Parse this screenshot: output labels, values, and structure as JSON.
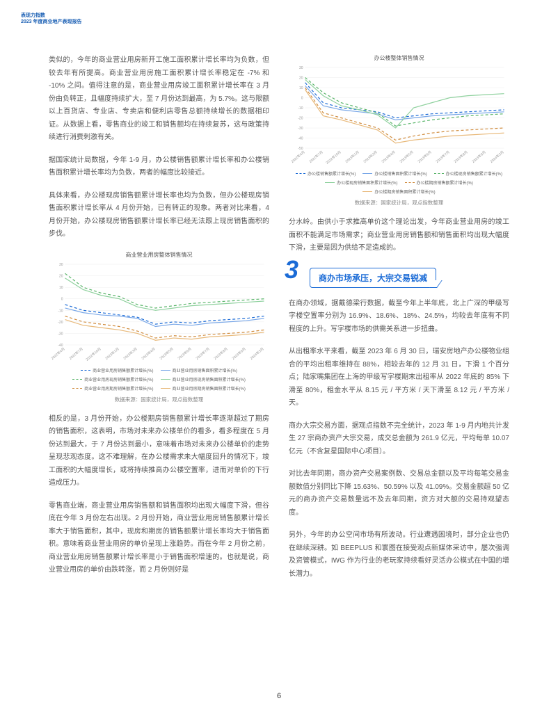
{
  "header": {
    "line1": "表现力指数",
    "line2": "2023 年度商业地产表现报告"
  },
  "paragraphs_left": [
    "类似的，今年的商业营业用房新开工施工面积累计增长率均为负数，但较去年有所提高。商业营业用房施工面积累计增长率稳定在 -7% 和 -10% 之间。值得注意的是，商业营业用房竣工面积累计增长率在 3 月份由负转正，且幅度持续扩大，至 7 月份达到最高，为 5.7%。这与限额以上百货店、专业店、专卖店和便利店零售总额持续增长的数据相印证。从数据上看，零售商业的竣工和销售额均在持续复苏，这与政策持续进行消费刺激有关。",
    "据国家统计局数据，今年 1-9 月，办公楼销售额累计增长率和办公楼销售面积累计增长率均为负数，两者的幅度比较接近。",
    "具体来看，办公楼现房销售额累计增长率也均为负数，但办公楼现房销售面积累计增长率从 4 月份开始，已有转正的现象。两者对比来看，4 月份开始，办公楼现房销售额累计增长率已经无法跟上现房销售面积的步伐。"
  ],
  "paragraphs_left_after_chart": [
    "相反的是，3 月份开始，办公楼期房销售额累计增长率逐渐超过了期房的销售面积，这表明，市场对未来办公楼单价的看多，看多程度在 5 月份达到最大，于 7 月份达到最小，意味着市场对未来办公楼单价的走势呈现悲观态度。这不难理解，在办公楼需求未大幅度回升的情况下，竣工面积的大幅度增长，或将持续推高办公楼空置率，进而对单价的下行造成压力。",
    "零售商业端，商业营业用房销售额和销售面积均出现大幅度下滑，但谷底在今年 3 月份左右出现。2 月份开始，商业营业用房销售额累计增长率大于销售面积，其中，现房和期房的销售额累计增长率均大于销售面积。意味着商业营业用房的单价呈现上涨趋势。而在今年 2 月份之前，商业营业用房销售额累计增长率是小于销售面积增速的。也就是说，商业营业用房的单价由跌转涨，而 2 月份则好是"
  ],
  "paragraphs_right_after_chart": [
    "分水岭。由供小于求推高单价这个理论出发，今年商业营业用房的竣工面积不能满足市场需求；商业营业用房销售额和销售面积均出现大幅度下滑，主要是因为供给不足造成的。"
  ],
  "section3": {
    "num": "3",
    "title": "商办市场承压，大宗交易锐减"
  },
  "paragraphs_section3": [
    "在商办领域，据戴德梁行数据，截至今年上半年底，北上广深的甲级写字楼空置率分别为 16.9%、18.6%、18%、24.5%，均较去年底有不同程度的上升。写字楼市场的供需关系进一步扭曲。",
    "从出租率水平来看，截至 2023 年 6 月 30 日，瑞安房地产办公楼物业组合的平均出租率维持在 88%，相较去年的 12 月 31 日，下滑 1 个百分点；陆家嘴集团在上海的甲级写字楼期末出租率从 2022 年底的 85% 下滑至 80%，租金水平从 8.15 元 / 平方米 / 天下滑至 8.12 元 / 平方米 / 天。",
    "商办大宗交易方面，据观点指数不完全统计，2023 年 1-9 月内地共计发生 27 宗商办资产大宗交易，成交总金额为 261.9 亿元，平均每单 10.07 亿元（不含复星国际中心项目）。",
    "对比去年同期，商办资产交易案例数、交易总金额以及平均每笔交易金额数值分别同比下降 15.63%、50.59% 以及 41.09%。交易金额超 50 亿元的商办资产交易数量远不及去年同期，资方对大额的交易持观望态度。",
    "另外，今年的办公空间市场有所波动。行业遭遇困境时，部分企业也仍在继续深耕。如 BEEPLUS 和寰图在接受观点新媒体采访中，屡次强调及资管模式，IWG 作为行业的老玩家持续看好灵活办公模式在中国的增长潜力。"
  ],
  "chart1": {
    "title": "商业营业用房整体销售情况",
    "source": "数据来源：国家统计局，观点指数整理",
    "x_labels": [
      "2022年4月",
      "2022年7月",
      "2022年10月",
      "2023年1月",
      "2023年3月",
      "2023年4月",
      "2023年5月",
      "2023年6月",
      "2023年7月",
      "2023年8月",
      "2023年9月",
      "2024年3月"
    ],
    "ylim": [
      -40,
      30
    ],
    "ytick_step": 10,
    "grid_color": "#eeeeee",
    "series": [
      {
        "name": "商业营业用房销售额累计增长(%)",
        "color": "#1b6bd6",
        "dash": "4 3",
        "values": [
          -5,
          -10,
          -12,
          -14,
          -16,
          -22,
          -20,
          -21,
          -19,
          -18,
          -17,
          -15
        ]
      },
      {
        "name": "商业营业用房销售面积累计增长(%)",
        "color": "#7aa8e8",
        "dash": "none",
        "values": [
          -8,
          -12,
          -14,
          -15,
          -17,
          -24,
          -22,
          -23,
          -21,
          -20,
          -19,
          -17
        ]
      },
      {
        "name": "商业营业用房现房销售额累计增长(%)",
        "color": "#5ab56a",
        "dash": "4 3",
        "values": [
          22,
          10,
          5,
          2,
          -5,
          -8,
          -6,
          -4,
          -3,
          -2,
          -1,
          0
        ]
      },
      {
        "name": "商业营业用房现房销售面积累计增长(%)",
        "color": "#8fd19e",
        "dash": "none",
        "values": [
          18,
          8,
          3,
          0,
          -7,
          -10,
          -8,
          -6,
          -5,
          -4,
          -3,
          -2
        ]
      },
      {
        "name": "商业营业用房期房销售额累计增长(%)",
        "color": "#d08c3e",
        "dash": "4 3",
        "values": [
          -15,
          -20,
          -22,
          -24,
          -28,
          -34,
          -32,
          -33,
          -31,
          -30,
          -29,
          -27
        ]
      },
      {
        "name": "商业营业用房期房销售面积累计增长(%)",
        "color": "#e8b97a",
        "dash": "none",
        "values": [
          -18,
          -23,
          -25,
          -27,
          -30,
          -36,
          -34,
          -35,
          -33,
          -32,
          -31,
          -29
        ]
      }
    ]
  },
  "chart2": {
    "title": "办公楼整体销售情况",
    "source": "数据来源：国家统计局，观点指数整理",
    "x_labels": [
      "2022年4月",
      "2022年7月",
      "2022年10月",
      "2023年1月",
      "2023年3月",
      "2023年4月",
      "2023年5月",
      "2023年6月",
      "2023年7月",
      "2023年8月",
      "2023年9月",
      "2024年3月"
    ],
    "ylim": [
      -50,
      30
    ],
    "ytick_step": 10,
    "grid_color": "#eeeeee",
    "series": [
      {
        "name": "办公楼销售额累计增长(%)",
        "color": "#1b6bd6",
        "dash": "4 3",
        "values": [
          15,
          -5,
          -10,
          -12,
          -14,
          -20,
          -18,
          -16,
          -15,
          -14,
          -13,
          -12
        ]
      },
      {
        "name": "办公楼销售面积累计增长(%)",
        "color": "#7aa8e8",
        "dash": "none",
        "values": [
          12,
          -8,
          -12,
          -14,
          -16,
          -22,
          -20,
          -18,
          -17,
          -16,
          -15,
          -14
        ]
      },
      {
        "name": "办公楼现房销售额累计增长(%)",
        "color": "#5ab56a",
        "dash": "4 3",
        "values": [
          20,
          5,
          -5,
          -10,
          -15,
          -28,
          -25,
          -22,
          -20,
          -18,
          -17,
          -16
        ]
      },
      {
        "name": "办公楼现房销售面积累计增长(%)",
        "color": "#8fd19e",
        "dash": "none",
        "values": [
          18,
          2,
          -8,
          -12,
          -17,
          -30,
          -10,
          -5,
          0,
          2,
          3,
          4
        ]
      },
      {
        "name": "办公楼期房销售额累计增长(%)",
        "color": "#d08c3e",
        "dash": "4 3",
        "values": [
          10,
          -15,
          -20,
          -25,
          -30,
          -42,
          -38,
          -35,
          -33,
          -32,
          -31,
          -30
        ]
      },
      {
        "name": "办公楼期房销售面积累计增长(%)",
        "color": "#e8b97a",
        "dash": "none",
        "values": [
          8,
          -18,
          -22,
          -27,
          -32,
          -45,
          -42,
          -40,
          -38,
          -37,
          -36,
          -35
        ]
      }
    ]
  },
  "page_number": "6"
}
